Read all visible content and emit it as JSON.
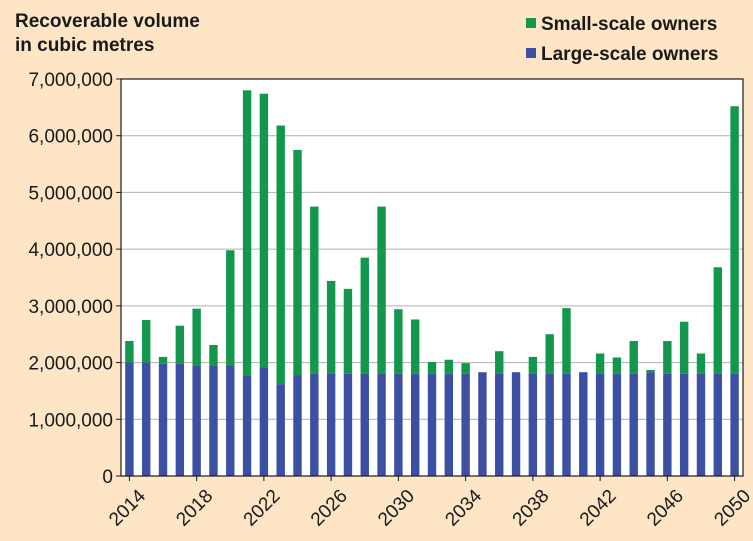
{
  "chart_data": {
    "type": "bar",
    "stacked": true,
    "title_lines": [
      "Recoverable volume",
      "in cubic metres"
    ],
    "x": [
      2014,
      2015,
      2016,
      2017,
      2018,
      2019,
      2020,
      2021,
      2022,
      2023,
      2024,
      2025,
      2026,
      2027,
      2028,
      2029,
      2030,
      2031,
      2032,
      2033,
      2034,
      2035,
      2036,
      2037,
      2038,
      2039,
      2040,
      2041,
      2042,
      2043,
      2044,
      2045,
      2046,
      2047,
      2048,
      2049,
      2050
    ],
    "x_tick_labels": [
      "2014",
      "2018",
      "2022",
      "2026",
      "2030",
      "2034",
      "2038",
      "2042",
      "2046",
      "2050"
    ],
    "series": [
      {
        "name": "Large-scale owners",
        "color": "#3d4fa2",
        "values": [
          2000000,
          2000000,
          1980000,
          1980000,
          1950000,
          1940000,
          1950000,
          1770000,
          1920000,
          1620000,
          1780000,
          1800000,
          1800000,
          1800000,
          1800000,
          1800000,
          1800000,
          1800000,
          1800000,
          1800000,
          1800000,
          1830000,
          1800000,
          1830000,
          1800000,
          1800000,
          1800000,
          1830000,
          1800000,
          1800000,
          1800000,
          1830000,
          1800000,
          1800000,
          1800000,
          1800000,
          1800000
        ]
      },
      {
        "name": "Small-scale owners",
        "color": "#12974c",
        "values": [
          380000,
          750000,
          120000,
          670000,
          1000000,
          370000,
          2030000,
          5030000,
          4820000,
          4560000,
          3970000,
          2950000,
          1640000,
          1500000,
          2050000,
          2950000,
          1140000,
          960000,
          210000,
          250000,
          190000,
          0,
          400000,
          0,
          300000,
          700000,
          1160000,
          0,
          360000,
          290000,
          580000,
          40000,
          580000,
          920000,
          360000,
          1880000,
          4720000
        ]
      }
    ],
    "legend": [
      "Small-scale owners",
      "Large-scale owners"
    ],
    "legend_position": "top-right",
    "y_ticks": [
      0,
      1000000,
      2000000,
      3000000,
      4000000,
      5000000,
      6000000,
      7000000
    ],
    "y_tick_labels": [
      "0",
      "1,000,000",
      "2,000,000",
      "3,000,000",
      "4,000,000",
      "5,000,000",
      "6,000,000",
      "7,000,000"
    ],
    "ylim": [
      0,
      7000000
    ],
    "grid": "horizontal",
    "background": "#fde5c6",
    "plot_background": "#ffffff",
    "grid_color": "#b0b0b0"
  }
}
